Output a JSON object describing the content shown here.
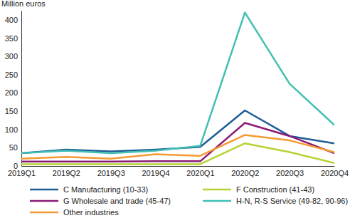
{
  "chart_data": {
    "type": "line",
    "y_label": "Million euros",
    "categories": [
      "2019Q1",
      "2019Q2",
      "2019Q3",
      "2019Q4",
      "2020Q1",
      "2020Q2",
      "2020Q3",
      "2020Q4"
    ],
    "series": [
      {
        "name": "C Manufacturing (10-33)",
        "color": "#1f5c99",
        "values": [
          35,
          45,
          40,
          45,
          52,
          152,
          82,
          62
        ]
      },
      {
        "name": "F Construction (41-43)",
        "color": "#b5d334",
        "values": [
          5,
          5,
          5,
          5,
          5,
          62,
          38,
          8
        ]
      },
      {
        "name": "G Wholesale and trade (45-47)",
        "color": "#8a1a75",
        "values": [
          12,
          12,
          12,
          13,
          13,
          118,
          82,
          35
        ]
      },
      {
        "name": "H-N, R-S Service (49-82, 90-96)",
        "color": "#41bfb3",
        "values": [
          35,
          42,
          35,
          42,
          55,
          420,
          225,
          112
        ]
      },
      {
        "name": "Other industries",
        "color": "#f59a32",
        "values": [
          20,
          25,
          20,
          32,
          28,
          85,
          70,
          38
        ]
      }
    ],
    "ylim": [
      0,
      425
    ],
    "yticks": [
      0,
      50,
      100,
      150,
      200,
      250,
      300,
      350,
      400
    ],
    "grid": false,
    "legend": "bottom"
  }
}
